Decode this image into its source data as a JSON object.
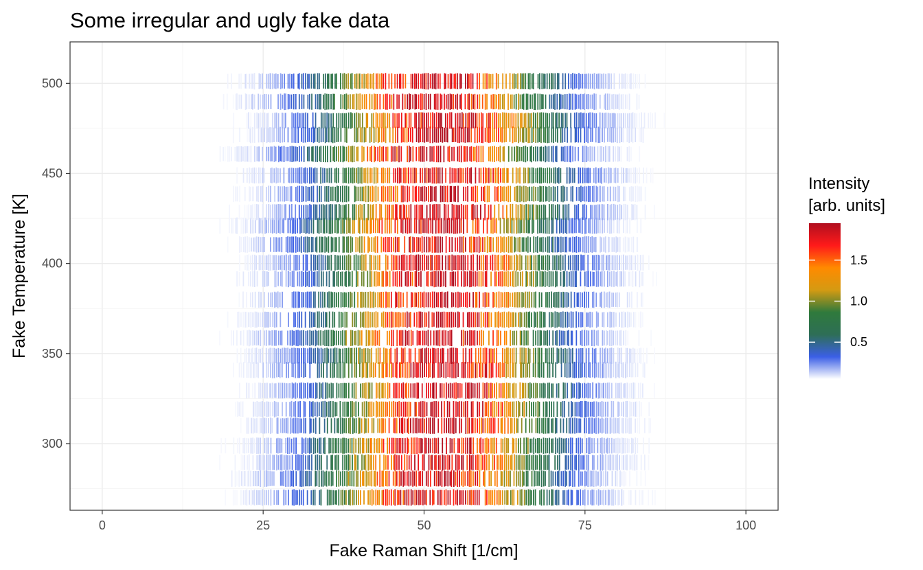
{
  "chart_data": {
    "type": "heatmap",
    "title": "Some irregular and ugly fake data",
    "xlabel": "Fake Raman Shift [1/cm]",
    "ylabel": "Fake Temperature [K]",
    "xlim": [
      -5,
      105
    ],
    "ylim": [
      263,
      523
    ],
    "x_ticks": [
      0,
      25,
      50,
      75,
      100
    ],
    "x_tick_labels": [
      "0",
      "25",
      "50",
      "75",
      "100"
    ],
    "y_ticks": [
      300,
      350,
      400,
      450,
      500
    ],
    "y_tick_labels": [
      "300",
      "350",
      "400",
      "450",
      "500"
    ],
    "x_range": [
      0,
      100
    ],
    "y_range": [
      270,
      500
    ],
    "row_count": 24,
    "points_per_row": 330,
    "peak_center": 52,
    "peak_width": 16,
    "peak_max": 1.95,
    "grid": true,
    "legend": {
      "title_lines": [
        "Intensity",
        "[arb. units]"
      ],
      "position": "right",
      "ticks": [
        0.5,
        1.0,
        1.5
      ],
      "tick_labels": [
        "0.5",
        "1.0",
        "1.5"
      ],
      "range": [
        0.05,
        1.95
      ],
      "colors": [
        "#ffffff",
        "#3b5fe6",
        "#2e6e56",
        "#2f7a3c",
        "#d49a12",
        "#ff8a00",
        "#ff1a1a",
        "#b10f1f"
      ]
    }
  }
}
